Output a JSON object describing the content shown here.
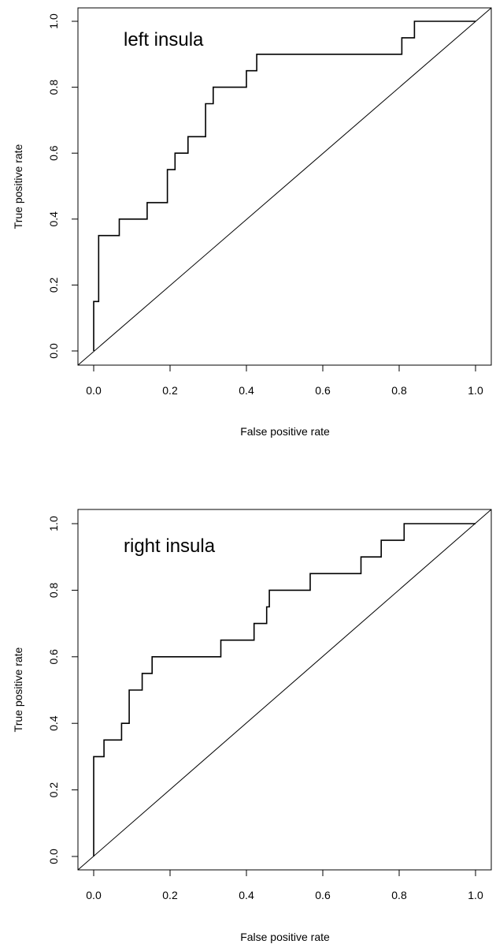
{
  "chart_data": [
    {
      "type": "line",
      "title": "left insula",
      "xlabel": "False positive rate",
      "ylabel": "True positive rate",
      "xlim": [
        0,
        1
      ],
      "ylim": [
        0,
        1
      ],
      "xticks": [
        0.0,
        0.2,
        0.4,
        0.6,
        0.8,
        1.0
      ],
      "yticks": [
        0.0,
        0.2,
        0.4,
        0.6,
        0.8,
        1.0
      ],
      "xtick_labels": [
        "0.0",
        "0.2",
        "0.4",
        "0.6",
        "0.8",
        "1.0"
      ],
      "ytick_labels": [
        "0.0",
        "0.2",
        "0.4",
        "0.6",
        "0.8",
        "1.0"
      ],
      "grid": false,
      "series": [
        {
          "style": "step",
          "x": [
            0.0,
            0.0,
            0.013,
            0.013,
            0.067,
            0.067,
            0.14,
            0.14,
            0.193,
            0.193,
            0.213,
            0.213,
            0.247,
            0.247,
            0.293,
            0.293,
            0.313,
            0.313,
            0.4,
            0.4,
            0.427,
            0.427,
            0.807,
            0.807,
            0.84,
            0.84,
            1.0
          ],
          "y": [
            0.0,
            0.15,
            0.15,
            0.35,
            0.35,
            0.4,
            0.4,
            0.45,
            0.45,
            0.55,
            0.55,
            0.6,
            0.6,
            0.65,
            0.65,
            0.75,
            0.75,
            0.8,
            0.8,
            0.85,
            0.85,
            0.9,
            0.9,
            0.95,
            0.95,
            1.0,
            1.0
          ]
        },
        {
          "style": "diagonal",
          "x": [
            0.0,
            1.0
          ],
          "y": [
            0.0,
            1.0
          ]
        }
      ]
    },
    {
      "type": "line",
      "title": "right insula",
      "xlabel": "False positive rate",
      "ylabel": "True positive rate",
      "xlim": [
        0,
        1
      ],
      "ylim": [
        0,
        1
      ],
      "xticks": [
        0.0,
        0.2,
        0.4,
        0.6,
        0.8,
        1.0
      ],
      "yticks": [
        0.0,
        0.2,
        0.4,
        0.6,
        0.8,
        1.0
      ],
      "xtick_labels": [
        "0.0",
        "0.2",
        "0.4",
        "0.6",
        "0.8",
        "1.0"
      ],
      "ytick_labels": [
        "0.0",
        "0.2",
        "0.4",
        "0.6",
        "0.8",
        "1.0"
      ],
      "grid": false,
      "series": [
        {
          "style": "step",
          "x": [
            0.0,
            0.0,
            0.027,
            0.027,
            0.073,
            0.073,
            0.093,
            0.093,
            0.127,
            0.127,
            0.153,
            0.153,
            0.333,
            0.333,
            0.42,
            0.42,
            0.453,
            0.453,
            0.46,
            0.46,
            0.567,
            0.567,
            0.7,
            0.7,
            0.753,
            0.753,
            0.813,
            0.813,
            1.0
          ],
          "y": [
            0.0,
            0.3,
            0.3,
            0.35,
            0.35,
            0.4,
            0.4,
            0.5,
            0.5,
            0.55,
            0.55,
            0.6,
            0.6,
            0.65,
            0.65,
            0.7,
            0.7,
            0.75,
            0.75,
            0.8,
            0.8,
            0.85,
            0.85,
            0.9,
            0.9,
            0.95,
            0.95,
            1.0,
            1.0
          ]
        },
        {
          "style": "diagonal",
          "x": [
            0.0,
            1.0
          ],
          "y": [
            0.0,
            1.0
          ]
        }
      ]
    }
  ]
}
